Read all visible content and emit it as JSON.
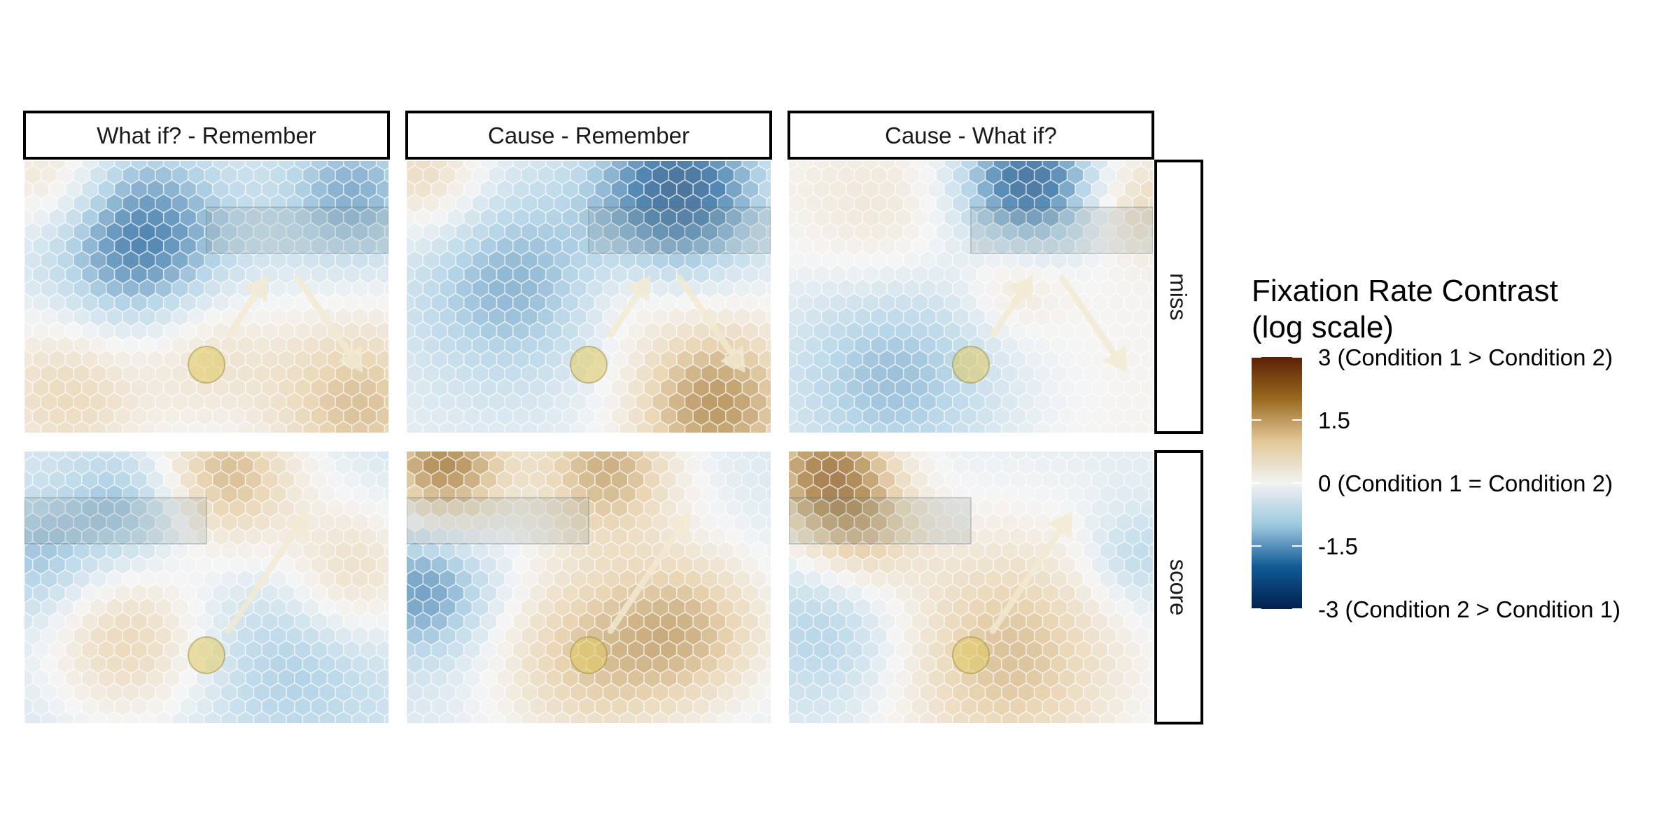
{
  "chart_data": {
    "type": "heatmap",
    "cell_shape": "hexagon",
    "columns": [
      "What if? - Remember",
      "Cause - Remember",
      "Cause - What if?"
    ],
    "rows": [
      "miss",
      "score"
    ],
    "legend": {
      "title_line1": "Fixation Rate Contrast",
      "title_line2": "(log scale)",
      "placement": "right",
      "range": [
        -3,
        3
      ],
      "colors": [
        "#00204d",
        "#115a96",
        "#9ec8e0",
        "#f2f2f2",
        "#e2c799",
        "#9a6a1f",
        "#5c1f04"
      ],
      "ticks": [
        {
          "value": 3,
          "label": "3 (Condition 1 > Condition 2)"
        },
        {
          "value": 1.5,
          "label": "1.5"
        },
        {
          "value": 0,
          "label": "0 (Condition 1 = Condition 2)"
        },
        {
          "value": -1.5,
          "label": "-1.5"
        },
        {
          "value": -3,
          "label": "-3 (Condition 2 > Condition 1)"
        }
      ]
    },
    "overlay_colors": {
      "ball": "#e0c860",
      "arrow": "#f3ead2"
    },
    "panels": [
      {
        "row": "miss",
        "col": "What if? - Remember",
        "base": -0.3,
        "blobs": [
          {
            "x": 0.32,
            "y": 0.3,
            "value": -2.1,
            "r": 0.18
          },
          {
            "x": 0.9,
            "y": 0.12,
            "value": -1.5,
            "r": 0.14
          },
          {
            "x": 0.07,
            "y": 0.05,
            "value": 0.7,
            "r": 0.12
          },
          {
            "x": 0.12,
            "y": 0.85,
            "value": 0.9,
            "r": 0.16
          },
          {
            "x": 0.92,
            "y": 0.9,
            "value": 1.3,
            "r": 0.18
          },
          {
            "x": 0.5,
            "y": 0.7,
            "value": 0.6,
            "r": 0.14
          }
        ]
      },
      {
        "row": "miss",
        "col": "Cause - Remember",
        "base": -0.25,
        "blobs": [
          {
            "x": 0.75,
            "y": 0.1,
            "value": -2.4,
            "r": 0.16
          },
          {
            "x": 0.28,
            "y": 0.45,
            "value": -1.4,
            "r": 0.2
          },
          {
            "x": 0.05,
            "y": 0.05,
            "value": 0.9,
            "r": 0.12
          },
          {
            "x": 0.85,
            "y": 0.9,
            "value": 1.9,
            "r": 0.17
          },
          {
            "x": 0.6,
            "y": 0.5,
            "value": 0.2,
            "r": 0.1
          }
        ]
      },
      {
        "row": "miss",
        "col": "Cause - What if?",
        "base": 0.1,
        "blobs": [
          {
            "x": 0.66,
            "y": 0.07,
            "value": -2.3,
            "r": 0.14
          },
          {
            "x": 0.28,
            "y": 0.78,
            "value": -1.3,
            "r": 0.24
          },
          {
            "x": 0.25,
            "y": 0.25,
            "value": 0.7,
            "r": 0.16
          },
          {
            "x": 0.62,
            "y": 0.45,
            "value": 0.8,
            "r": 0.1
          },
          {
            "x": 0.96,
            "y": 0.15,
            "value": 0.9,
            "r": 0.1
          }
        ]
      },
      {
        "row": "score",
        "col": "What if? - Remember",
        "base": -0.5,
        "blobs": [
          {
            "x": 0.55,
            "y": 0.08,
            "value": 1.4,
            "r": 0.15
          },
          {
            "x": 0.3,
            "y": 0.2,
            "value": -1.5,
            "r": 0.12
          },
          {
            "x": 0.05,
            "y": 0.4,
            "value": -1.3,
            "r": 0.12
          },
          {
            "x": 0.28,
            "y": 0.7,
            "value": 0.9,
            "r": 0.16
          },
          {
            "x": 0.75,
            "y": 0.75,
            "value": -1.2,
            "r": 0.18
          },
          {
            "x": 0.9,
            "y": 0.45,
            "value": 0.8,
            "r": 0.14
          }
        ]
      },
      {
        "row": "score",
        "col": "Cause - Remember",
        "base": -0.4,
        "blobs": [
          {
            "x": 0.1,
            "y": 0.05,
            "value": 2.1,
            "r": 0.13
          },
          {
            "x": 0.55,
            "y": 0.05,
            "value": 1.5,
            "r": 0.14
          },
          {
            "x": 0.05,
            "y": 0.5,
            "value": -1.8,
            "r": 0.14
          },
          {
            "x": 0.5,
            "y": 0.75,
            "value": 1.1,
            "r": 0.2
          },
          {
            "x": 0.8,
            "y": 0.65,
            "value": 1.0,
            "r": 0.16
          }
        ]
      },
      {
        "row": "score",
        "col": "Cause - What if?",
        "base": -0.3,
        "blobs": [
          {
            "x": 0.1,
            "y": 0.06,
            "value": 2.0,
            "r": 0.13
          },
          {
            "x": 0.2,
            "y": 0.3,
            "value": 0.9,
            "r": 0.12
          },
          {
            "x": 0.12,
            "y": 0.65,
            "value": -1.2,
            "r": 0.16
          },
          {
            "x": 0.6,
            "y": 0.75,
            "value": 1.3,
            "r": 0.24
          },
          {
            "x": 0.95,
            "y": 0.4,
            "value": -1.1,
            "r": 0.1
          }
        ]
      }
    ]
  }
}
